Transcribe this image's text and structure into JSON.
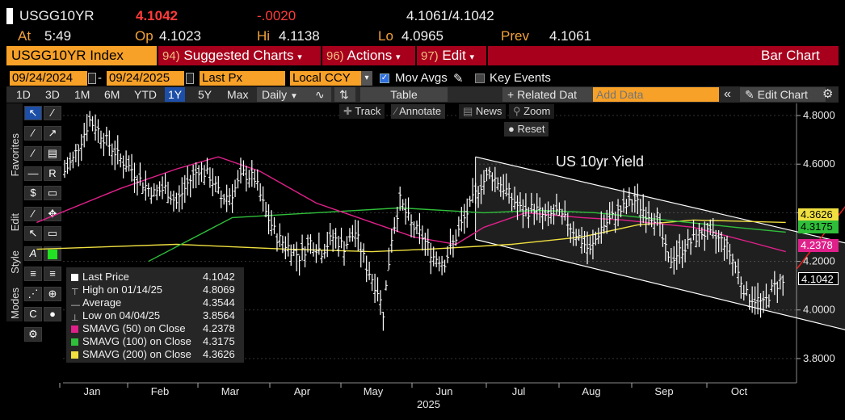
{
  "header": {
    "ticker": "USGG10YR",
    "last": "4.1042",
    "change": "-.0020",
    "bid_ask": "4.1061/4.1042",
    "at_label": "At",
    "at_value": "5:49",
    "op_label": "Op",
    "op_value": "4.1023",
    "hi_label": "Hi",
    "hi_value": "4.1138",
    "lo_label": "Lo",
    "lo_value": "4.0965",
    "prev_label": "Prev",
    "prev_value": "4.1061"
  },
  "command_bar": {
    "security": "USGG10YR Index",
    "items": [
      {
        "num": "94)",
        "label": "Suggested Charts"
      },
      {
        "num": "96)",
        "label": "Actions"
      },
      {
        "num": "97)",
        "label": "Edit"
      }
    ],
    "chart_type": "Bar Chart"
  },
  "settings_row": {
    "start_date": "09/24/2024",
    "end_date": "09/24/2025",
    "field": "Last Px",
    "currency": "Local CCY",
    "mov_avgs": "Mov Avgs",
    "key_events": "Key Events"
  },
  "toolbar": {
    "ranges": [
      "1D",
      "3D",
      "1M",
      "6M",
      "YTD",
      "1Y",
      "5Y",
      "Max"
    ],
    "active_range": "1Y",
    "frequency": "Daily",
    "table": "Table",
    "related": "+ Related Dat",
    "add_data_placeholder": "Add Data",
    "edit_chart": "Edit Chart"
  },
  "side_tabs": [
    "Favorites",
    "Edit",
    "Style",
    "Modes"
  ],
  "overlay_buttons": {
    "track": "Track",
    "annotate": "Annotate",
    "news": "News",
    "zoom": "Zoom",
    "reset": "Reset"
  },
  "colors": {
    "price": "#ffffff",
    "sma50": "#e0208a",
    "sma100": "#2fbf3a",
    "sma200": "#f0e040",
    "arrow": "#e02020",
    "channel": "#ffffff"
  },
  "chart_data": {
    "type": "bar",
    "title": "US 10yr Yield",
    "ylim": [
      3.7,
      4.85
    ],
    "yticks": [
      "4.8000",
      "4.6000",
      "4.4000",
      "4.2000",
      "4.0000",
      "3.8000"
    ],
    "xticks": [
      "Jan",
      "Feb",
      "Mar",
      "Apr",
      "May",
      "Jun",
      "Jul",
      "Aug",
      "Sep",
      "Oct"
    ],
    "year_label": "2025",
    "price_series": [
      {
        "x": 0,
        "y": 4.57
      },
      {
        "x": 3,
        "y": 4.62
      },
      {
        "x": 6,
        "y": 4.7
      },
      {
        "x": 9,
        "y": 4.78
      },
      {
        "x": 12,
        "y": 4.74
      },
      {
        "x": 16,
        "y": 4.68
      },
      {
        "x": 20,
        "y": 4.62
      },
      {
        "x": 24,
        "y": 4.58
      },
      {
        "x": 28,
        "y": 4.52
      },
      {
        "x": 32,
        "y": 4.48
      },
      {
        "x": 36,
        "y": 4.5
      },
      {
        "x": 40,
        "y": 4.44
      },
      {
        "x": 44,
        "y": 4.52
      },
      {
        "x": 48,
        "y": 4.58
      },
      {
        "x": 52,
        "y": 4.55
      },
      {
        "x": 56,
        "y": 4.46
      },
      {
        "x": 60,
        "y": 4.48
      },
      {
        "x": 64,
        "y": 4.56
      },
      {
        "x": 68,
        "y": 4.54
      },
      {
        "x": 72,
        "y": 4.4
      },
      {
        "x": 76,
        "y": 4.3
      },
      {
        "x": 80,
        "y": 4.26
      },
      {
        "x": 84,
        "y": 4.22
      },
      {
        "x": 88,
        "y": 4.28
      },
      {
        "x": 92,
        "y": 4.24
      },
      {
        "x": 96,
        "y": 4.3
      },
      {
        "x": 100,
        "y": 4.26
      },
      {
        "x": 104,
        "y": 4.32
      },
      {
        "x": 108,
        "y": 4.18
      },
      {
        "x": 112,
        "y": 4.08
      },
      {
        "x": 114,
        "y": 3.99
      },
      {
        "x": 117,
        "y": 4.3
      },
      {
        "x": 120,
        "y": 4.45
      },
      {
        "x": 124,
        "y": 4.35
      },
      {
        "x": 128,
        "y": 4.3
      },
      {
        "x": 132,
        "y": 4.22
      },
      {
        "x": 136,
        "y": 4.2
      },
      {
        "x": 140,
        "y": 4.3
      },
      {
        "x": 144,
        "y": 4.4
      },
      {
        "x": 148,
        "y": 4.5
      },
      {
        "x": 152,
        "y": 4.56
      },
      {
        "x": 156,
        "y": 4.52
      },
      {
        "x": 160,
        "y": 4.46
      },
      {
        "x": 164,
        "y": 4.4
      },
      {
        "x": 168,
        "y": 4.42
      },
      {
        "x": 172,
        "y": 4.38
      },
      {
        "x": 176,
        "y": 4.4
      },
      {
        "x": 180,
        "y": 4.36
      },
      {
        "x": 184,
        "y": 4.3
      },
      {
        "x": 188,
        "y": 4.24
      },
      {
        "x": 192,
        "y": 4.34
      },
      {
        "x": 196,
        "y": 4.38
      },
      {
        "x": 200,
        "y": 4.42
      },
      {
        "x": 204,
        "y": 4.45
      },
      {
        "x": 208,
        "y": 4.4
      },
      {
        "x": 212,
        "y": 4.38
      },
      {
        "x": 216,
        "y": 4.2
      },
      {
        "x": 220,
        "y": 4.24
      },
      {
        "x": 224,
        "y": 4.28
      },
      {
        "x": 228,
        "y": 4.32
      },
      {
        "x": 232,
        "y": 4.3
      },
      {
        "x": 236,
        "y": 4.28
      },
      {
        "x": 240,
        "y": 4.18
      },
      {
        "x": 244,
        "y": 4.06
      },
      {
        "x": 248,
        "y": 4.04
      },
      {
        "x": 250,
        "y": 4.02
      },
      {
        "x": 253,
        "y": 4.08
      },
      {
        "x": 256,
        "y": 4.12
      },
      {
        "x": 258,
        "y": 4.1
      }
    ],
    "sma50": [
      [
        -10,
        4.36
      ],
      [
        20,
        4.5
      ],
      [
        40,
        4.58
      ],
      [
        55,
        4.63
      ],
      [
        70,
        4.57
      ],
      [
        90,
        4.44
      ],
      [
        110,
        4.36
      ],
      [
        125,
        4.3
      ],
      [
        140,
        4.27
      ],
      [
        150,
        4.34
      ],
      [
        165,
        4.4
      ],
      [
        185,
        4.38
      ],
      [
        200,
        4.37
      ],
      [
        225,
        4.34
      ],
      [
        245,
        4.28
      ],
      [
        258,
        4.24
      ]
    ],
    "sma100": [
      [
        30,
        4.2
      ],
      [
        60,
        4.38
      ],
      [
        90,
        4.4
      ],
      [
        120,
        4.42
      ],
      [
        150,
        4.4
      ],
      [
        170,
        4.41
      ],
      [
        190,
        4.4
      ],
      [
        215,
        4.37
      ],
      [
        240,
        4.34
      ],
      [
        258,
        4.32
      ]
    ],
    "sma200": [
      [
        -10,
        4.25
      ],
      [
        40,
        4.27
      ],
      [
        80,
        4.25
      ],
      [
        110,
        4.24
      ],
      [
        130,
        4.25
      ],
      [
        160,
        4.27
      ],
      [
        185,
        4.3
      ],
      [
        205,
        4.35
      ],
      [
        225,
        4.37
      ],
      [
        258,
        4.36
      ]
    ],
    "channel": {
      "upper": [
        [
          147,
          4.63
        ],
        [
          300,
          4.22
        ]
      ],
      "lower": [
        [
          147,
          4.29
        ],
        [
          300,
          3.86
        ]
      ]
    },
    "arrow": {
      "from": [
        262,
        4.17
      ],
      "to": [
        283,
        4.48
      ]
    },
    "price_tags": [
      {
        "label": "4.3626",
        "value": 4.3626,
        "color": "#f0e040"
      },
      {
        "label": "4.3175",
        "value": 4.3175,
        "color": "#2fbf3a"
      },
      {
        "label": "4.2378",
        "value": 4.2378,
        "color": "#e0208a"
      },
      {
        "label": "4.1042",
        "value": 4.1042,
        "color": "#ffffff"
      }
    ],
    "legend": [
      {
        "label": "Last Price",
        "value": "4.1042",
        "marker": "white"
      },
      {
        "label": "High on 01/14/25",
        "value": "4.8069",
        "marker": "high"
      },
      {
        "label": "Average",
        "value": "4.3544",
        "marker": "avg"
      },
      {
        "label": "Low on 04/04/25",
        "value": "3.8564",
        "marker": "low"
      },
      {
        "label": "SMAVG (50)  on Close",
        "value": "4.2378",
        "marker": "#e0208a"
      },
      {
        "label": "SMAVG (100)  on Close",
        "value": "4.3175",
        "marker": "#2fbf3a"
      },
      {
        "label": "SMAVG (200)  on Close",
        "value": "4.3626",
        "marker": "#f0e040"
      }
    ]
  }
}
